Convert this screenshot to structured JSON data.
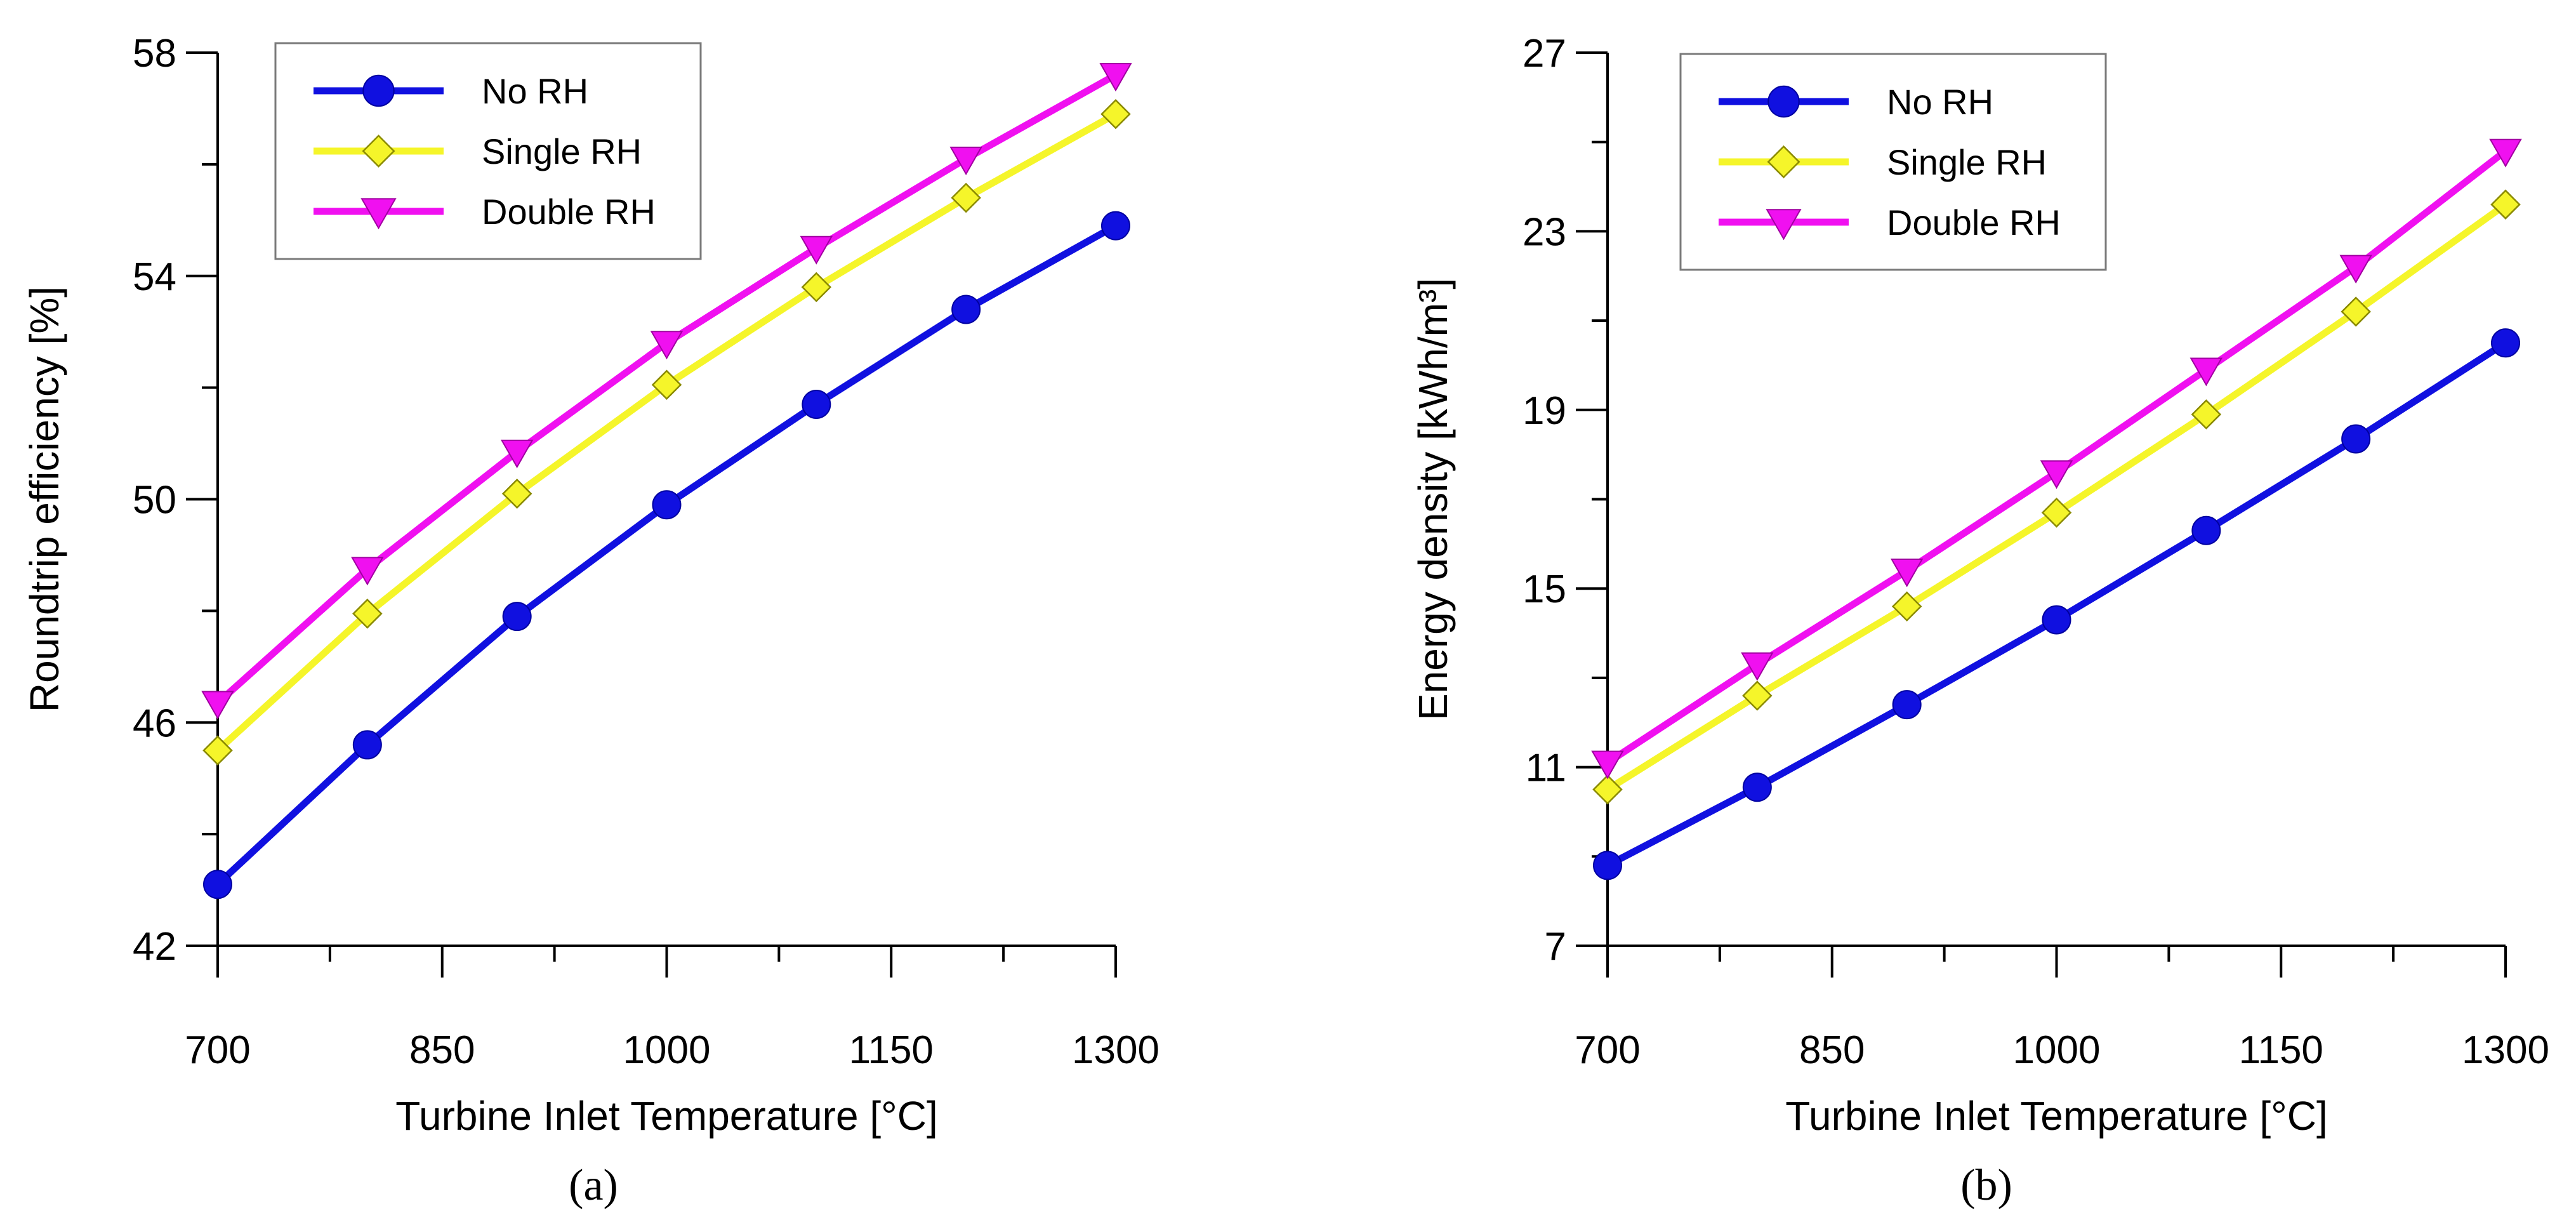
{
  "chart_data": [
    {
      "type": "line",
      "panel": "a",
      "caption": "(a)",
      "xlabel": "Turbine Inlet Temperature [°C]",
      "ylabel": "Roundtrip efficiency [%]",
      "x": [
        700,
        800,
        900,
        1000,
        1100,
        1200,
        1300
      ],
      "xlim": [
        700,
        1300
      ],
      "xticks": [
        700,
        850,
        1000,
        1150,
        1300
      ],
      "xminor": [
        775,
        925,
        1075,
        1225
      ],
      "ylim": [
        42,
        58
      ],
      "yticks": [
        42,
        46,
        50,
        54,
        58
      ],
      "yminor": [
        44,
        48,
        52,
        56
      ],
      "legend_position": "top-left",
      "series": [
        {
          "name": "No RH",
          "color": "#1010e0",
          "marker": "circle",
          "values": [
            43.1,
            45.6,
            47.9,
            49.9,
            51.7,
            53.4,
            54.9
          ]
        },
        {
          "name": "Single RH",
          "color": "#f5f52a",
          "marker": "diamond",
          "values": [
            45.5,
            47.95,
            50.1,
            52.05,
            53.8,
            55.4,
            56.9
          ]
        },
        {
          "name": "Double RH",
          "color": "#f010f0",
          "marker": "triangle-down",
          "values": [
            46.35,
            48.75,
            50.85,
            52.8,
            54.5,
            56.1,
            57.6
          ]
        }
      ]
    },
    {
      "type": "line",
      "panel": "b",
      "caption": "(b)",
      "xlabel": "Turbine Inlet Temperature [°C]",
      "ylabel": "Energy density [kWh/m³]",
      "x": [
        700,
        800,
        900,
        1000,
        1100,
        1200,
        1300
      ],
      "xlim": [
        700,
        1300
      ],
      "xticks": [
        700,
        850,
        1000,
        1150,
        1300
      ],
      "xminor": [
        775,
        925,
        1075,
        1225
      ],
      "ylim": [
        7,
        27
      ],
      "yticks": [
        7,
        11,
        15,
        19,
        23,
        27
      ],
      "yminor": [
        9,
        13,
        17,
        21,
        25
      ],
      "legend_position": "top-left",
      "series": [
        {
          "name": "No RH",
          "color": "#1010e0",
          "marker": "circle",
          "values": [
            8.8,
            10.55,
            12.4,
            14.3,
            16.3,
            18.35,
            20.5
          ]
        },
        {
          "name": "Single RH",
          "color": "#f5f52a",
          "marker": "diamond",
          "values": [
            10.5,
            12.6,
            14.6,
            16.7,
            18.9,
            21.2,
            23.6
          ]
        },
        {
          "name": "Double RH",
          "color": "#f010f0",
          "marker": "triangle-down",
          "values": [
            11.1,
            13.3,
            15.4,
            17.6,
            19.9,
            22.2,
            24.8
          ]
        }
      ]
    }
  ]
}
